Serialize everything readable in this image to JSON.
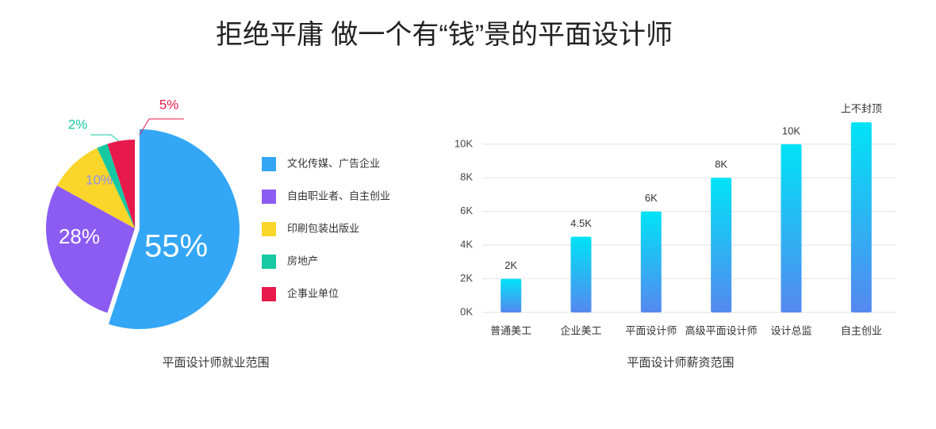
{
  "title": "拒绝平庸 做一个有“钱”景的平面设计师",
  "chart_data": [
    {
      "type": "pie",
      "title": "平面设计师就业范围",
      "categories": [
        "文化传媒、广告企业",
        "自由职业者、自主创业",
        "印刷包装出版业",
        "房地产",
        "企事业单位"
      ],
      "values": [
        55,
        28,
        10,
        2,
        5
      ],
      "value_labels": [
        "55%",
        "28%",
        "10%",
        "2%",
        "5%"
      ],
      "colors": [
        "#33a6f6",
        "#8c5cf2",
        "#fad52a",
        "#16c9a2",
        "#e8194b"
      ]
    },
    {
      "type": "bar",
      "title": "平面设计师薪资范围",
      "categories": [
        "普通美工",
        "企业美工",
        "平面设计师",
        "高级平面设计师",
        "设计总监",
        "自主创业"
      ],
      "values": [
        2000,
        4500,
        6000,
        8000,
        10000,
        11300
      ],
      "value_labels": [
        "2K",
        "4.5K",
        "6K",
        "8K",
        "10K",
        "上不封顶"
      ],
      "color": [
        "#00e3f6",
        "#5588f0"
      ],
      "ylim": [
        0,
        11500
      ],
      "yticks": [
        {
          "value": 0,
          "label": "0K"
        },
        {
          "value": 2000,
          "label": "2K"
        },
        {
          "value": 4000,
          "label": "4K"
        },
        {
          "value": 6000,
          "label": "6K"
        },
        {
          "value": 8000,
          "label": "8K"
        },
        {
          "value": 10000,
          "label": "10K"
        }
      ],
      "grid": true
    }
  ]
}
